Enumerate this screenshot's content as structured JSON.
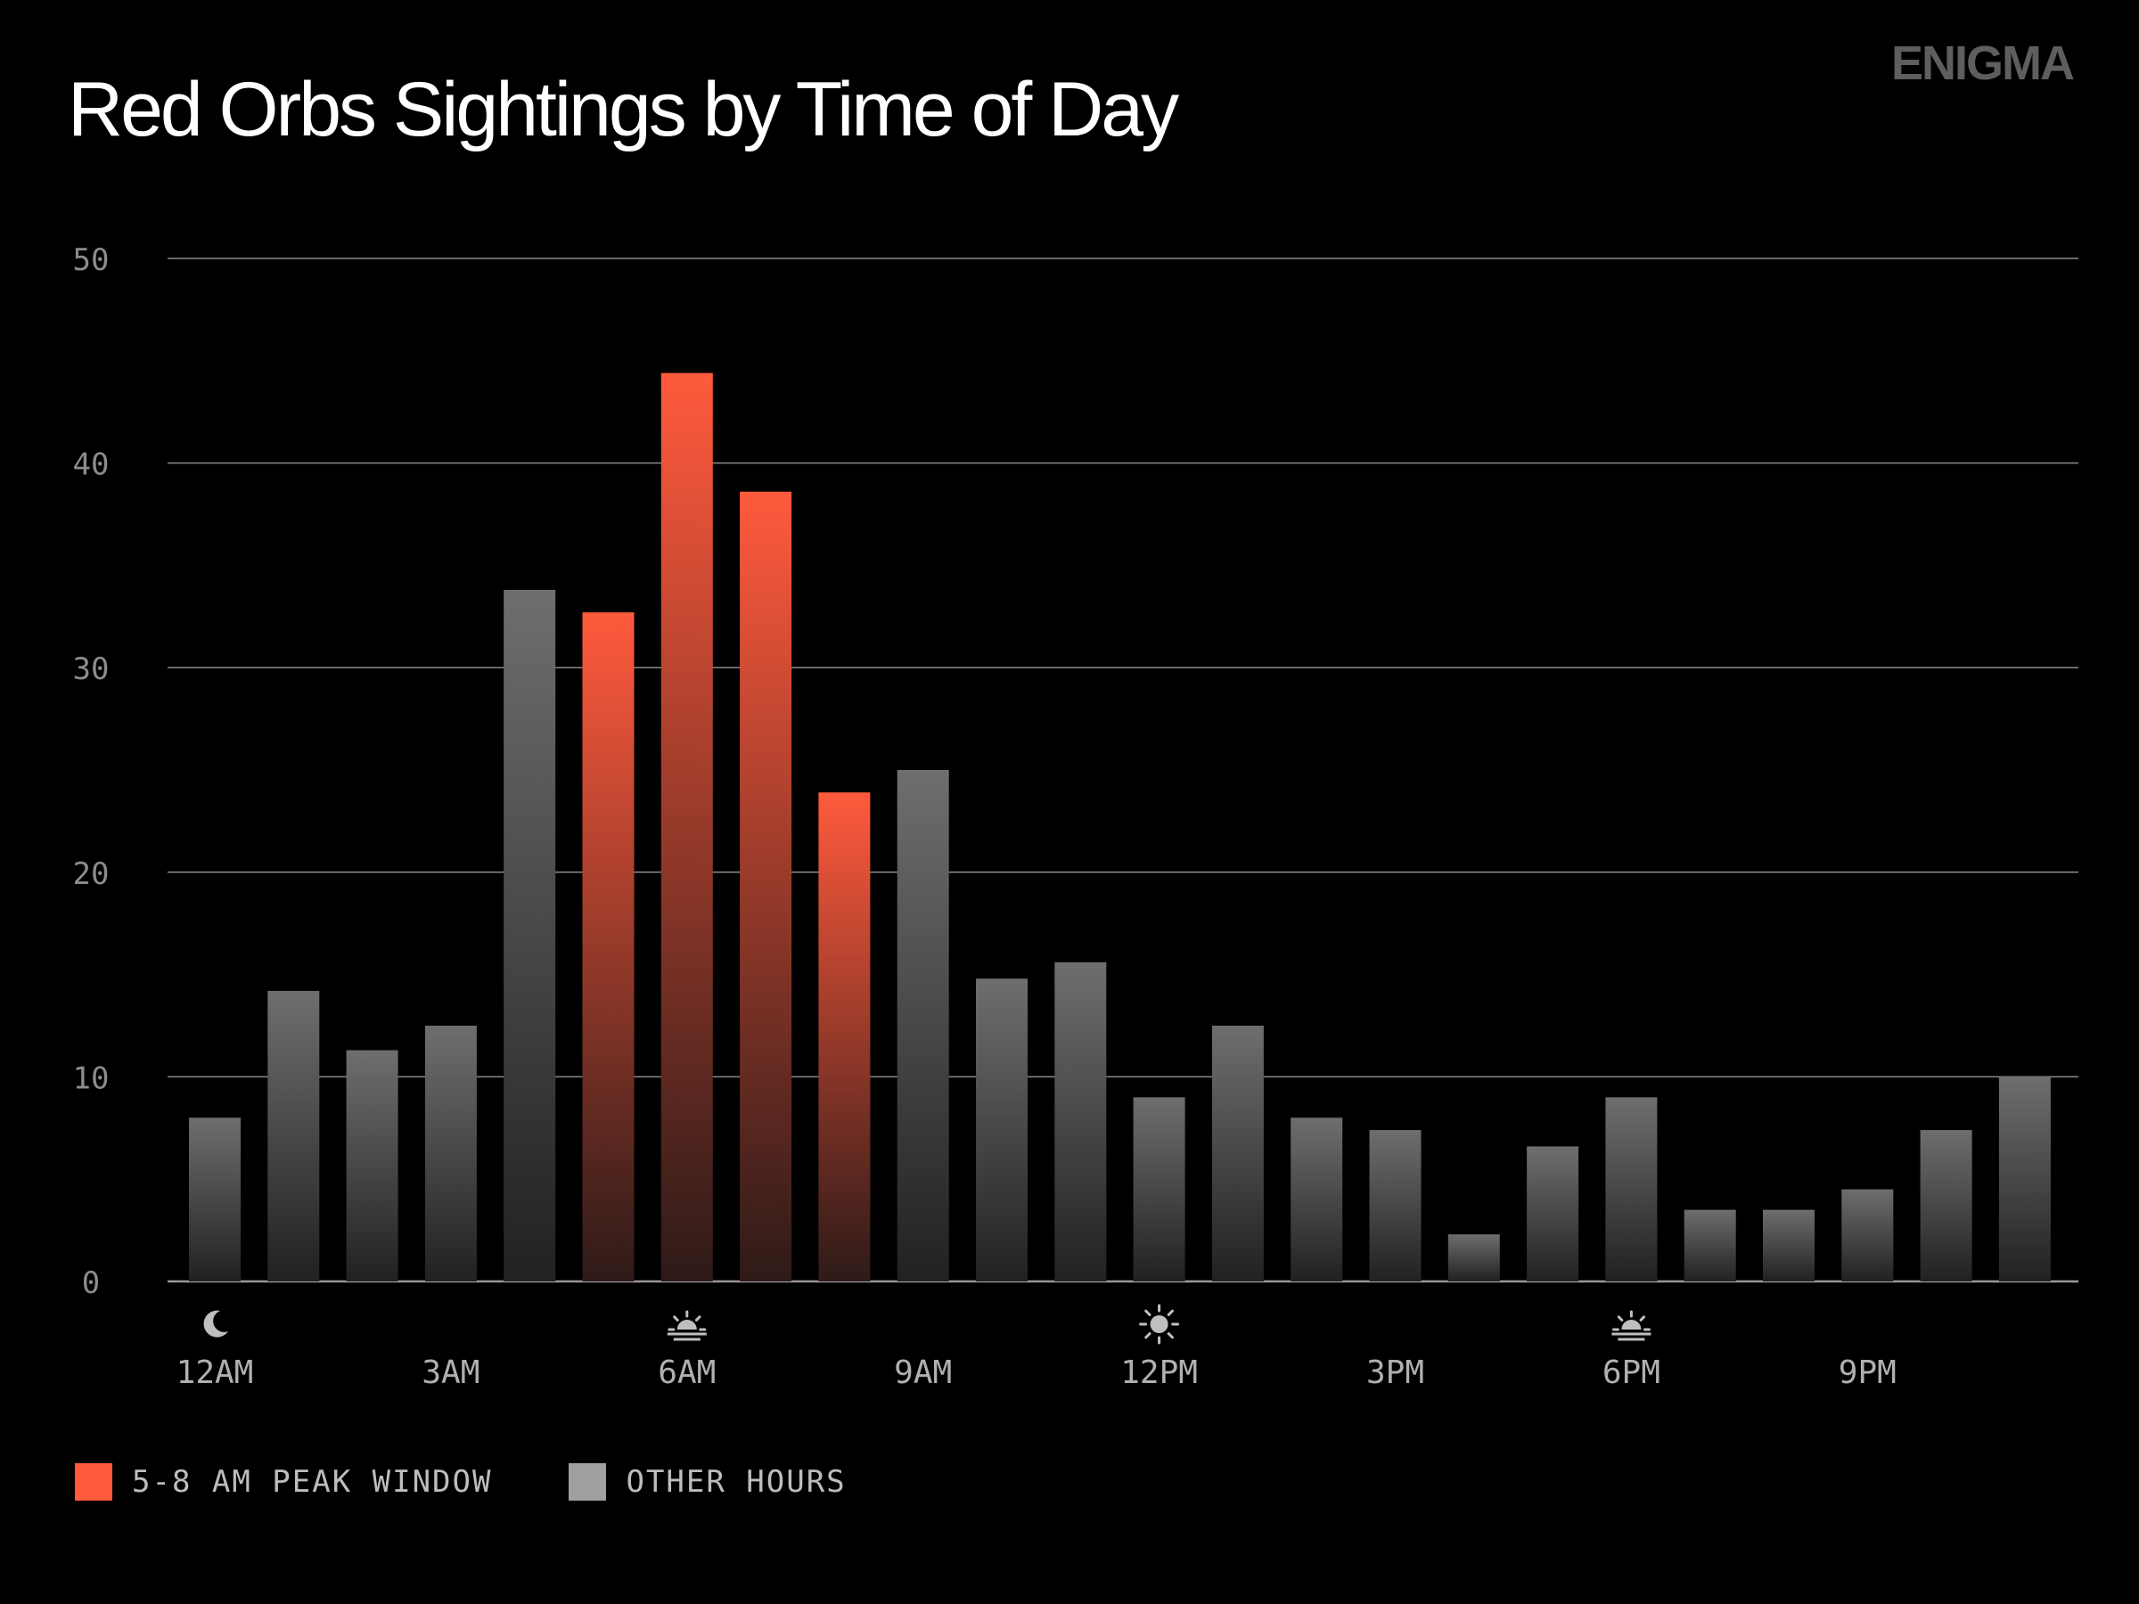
{
  "brand": "ENIGMA",
  "title": "Red Orbs Sightings by Time of Day",
  "colors": {
    "background": "#000000",
    "peak": "#ff5a3c",
    "other": "#a0a0a0",
    "grid": "#8a8a8a",
    "axis_text": "#8c8c8c",
    "brand": "#5e5e5e"
  },
  "legend": {
    "peak_label": "5-8 AM PEAK WINDOW",
    "other_label": "OTHER HOURS"
  },
  "chart_data": {
    "type": "bar",
    "title": "Red Orbs Sightings by Time of Day",
    "xlabel": "",
    "ylabel": "",
    "ylim": [
      0,
      50
    ],
    "yticks": [
      0,
      10,
      20,
      30,
      40,
      50
    ],
    "grid": true,
    "legend_position": "bottom-left",
    "hours": [
      "12AM",
      "1AM",
      "2AM",
      "3AM",
      "4AM",
      "5AM",
      "6AM",
      "7AM",
      "8AM",
      "9AM",
      "10AM",
      "11AM",
      "12PM",
      "1PM",
      "2PM",
      "3PM",
      "4PM",
      "5PM",
      "6PM",
      "7PM",
      "8PM",
      "9PM",
      "10PM",
      "11PM"
    ],
    "values": [
      8,
      14.2,
      11.3,
      12.5,
      33.8,
      32.7,
      44.4,
      38.6,
      23.9,
      25,
      14.8,
      15.6,
      9,
      12.5,
      8,
      7.4,
      2.3,
      6.6,
      9,
      3.5,
      3.5,
      4.5,
      7.4,
      10
    ],
    "peak_hours": [
      5,
      6,
      7,
      8
    ],
    "x_tick_labels": [
      {
        "hour": 0,
        "label": "12AM",
        "icon": "moon-icon"
      },
      {
        "hour": 3,
        "label": "3AM",
        "icon": ""
      },
      {
        "hour": 6,
        "label": "6AM",
        "icon": "sunrise-icon"
      },
      {
        "hour": 9,
        "label": "9AM",
        "icon": ""
      },
      {
        "hour": 12,
        "label": "12PM",
        "icon": "sun-icon"
      },
      {
        "hour": 15,
        "label": "3PM",
        "icon": ""
      },
      {
        "hour": 18,
        "label": "6PM",
        "icon": "sunset-icon"
      },
      {
        "hour": 21,
        "label": "9PM",
        "icon": ""
      }
    ],
    "series": [
      {
        "name": "5-8 AM PEAK WINDOW",
        "color": "#ff5a3c"
      },
      {
        "name": "OTHER HOURS",
        "color": "#a0a0a0"
      }
    ]
  }
}
